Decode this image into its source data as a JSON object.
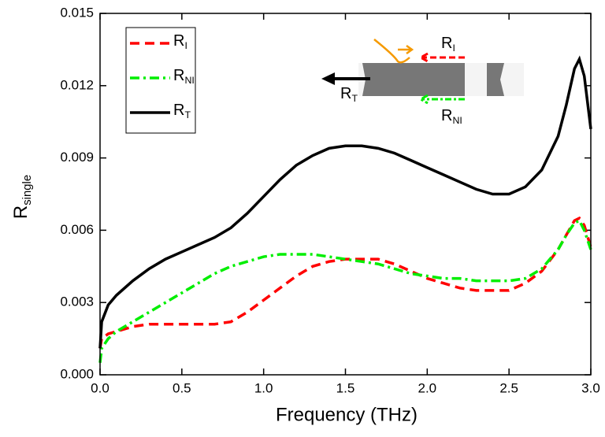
{
  "chart_data": {
    "type": "line",
    "xlabel": "Frequency (THz)",
    "ylabel": "Rsingle",
    "x": [
      0,
      0.01,
      0.05,
      0.1,
      0.2,
      0.3,
      0.4,
      0.5,
      0.6,
      0.7,
      0.8,
      0.9,
      1.0,
      1.1,
      1.2,
      1.3,
      1.4,
      1.5,
      1.6,
      1.7,
      1.8,
      1.9,
      2.0,
      2.1,
      2.2,
      2.3,
      2.4,
      2.5,
      2.6,
      2.7,
      2.8,
      2.85,
      2.9,
      2.93,
      2.96,
      3.0
    ],
    "series": [
      {
        "name": "RI",
        "color": "#ff0000",
        "dash": "12 7",
        "values": [
          0.0011,
          0.0015,
          0.0017,
          0.0018,
          0.002,
          0.0021,
          0.0021,
          0.0021,
          0.0021,
          0.0021,
          0.0022,
          0.0026,
          0.0031,
          0.0036,
          0.0041,
          0.0045,
          0.0047,
          0.0048,
          0.0048,
          0.0048,
          0.0046,
          0.0043,
          0.004,
          0.0038,
          0.0036,
          0.0035,
          0.0035,
          0.0035,
          0.0038,
          0.0043,
          0.0052,
          0.0058,
          0.0064,
          0.0065,
          0.0062,
          0.0053
        ]
      },
      {
        "name": "RNI",
        "color": "#00ee00",
        "dash": "12 5 3 5",
        "values": [
          0.0005,
          0.0011,
          0.0015,
          0.0018,
          0.0022,
          0.0026,
          0.003,
          0.0034,
          0.0038,
          0.0042,
          0.0045,
          0.0047,
          0.0049,
          0.005,
          0.005,
          0.005,
          0.0049,
          0.0048,
          0.0047,
          0.0046,
          0.0044,
          0.0042,
          0.0041,
          0.004,
          0.004,
          0.0039,
          0.0039,
          0.0039,
          0.004,
          0.0044,
          0.0052,
          0.0058,
          0.0063,
          0.0064,
          0.006,
          0.0052
        ]
      },
      {
        "name": "RT",
        "color": "#000000",
        "dash": "none",
        "values": [
          0.0011,
          0.0022,
          0.0029,
          0.0033,
          0.0039,
          0.0044,
          0.0048,
          0.0051,
          0.0054,
          0.0057,
          0.0061,
          0.0067,
          0.0074,
          0.0081,
          0.0087,
          0.0091,
          0.0094,
          0.0095,
          0.0095,
          0.0094,
          0.0092,
          0.0089,
          0.0086,
          0.0083,
          0.008,
          0.0077,
          0.0075,
          0.0075,
          0.0078,
          0.0085,
          0.0099,
          0.0112,
          0.0127,
          0.0131,
          0.0124,
          0.0102
        ]
      }
    ],
    "xlim": [
      0,
      3
    ],
    "xticks": [
      {
        "value": 0,
        "label": "0.0"
      },
      0.5,
      {
        "value": 1,
        "label": "1.0"
      },
      1.5,
      {
        "value": 2,
        "label": "2.0"
      },
      2.5,
      {
        "value": 3,
        "label": "3.0"
      }
    ],
    "ylim": [
      0,
      0.015
    ],
    "yticks": [
      {
        "value": 0,
        "label": "0.000"
      },
      {
        "value": 0.003,
        "label": "0.003"
      },
      {
        "value": 0.006,
        "label": "0.006"
      },
      {
        "value": 0.009,
        "label": "0.009"
      },
      {
        "value": 0.012,
        "label": "0.012"
      },
      {
        "value": 0.015,
        "label": "0.015"
      }
    ],
    "legend": "upper left",
    "annotations": [
      "RI",
      "RT",
      "RNI"
    ]
  }
}
